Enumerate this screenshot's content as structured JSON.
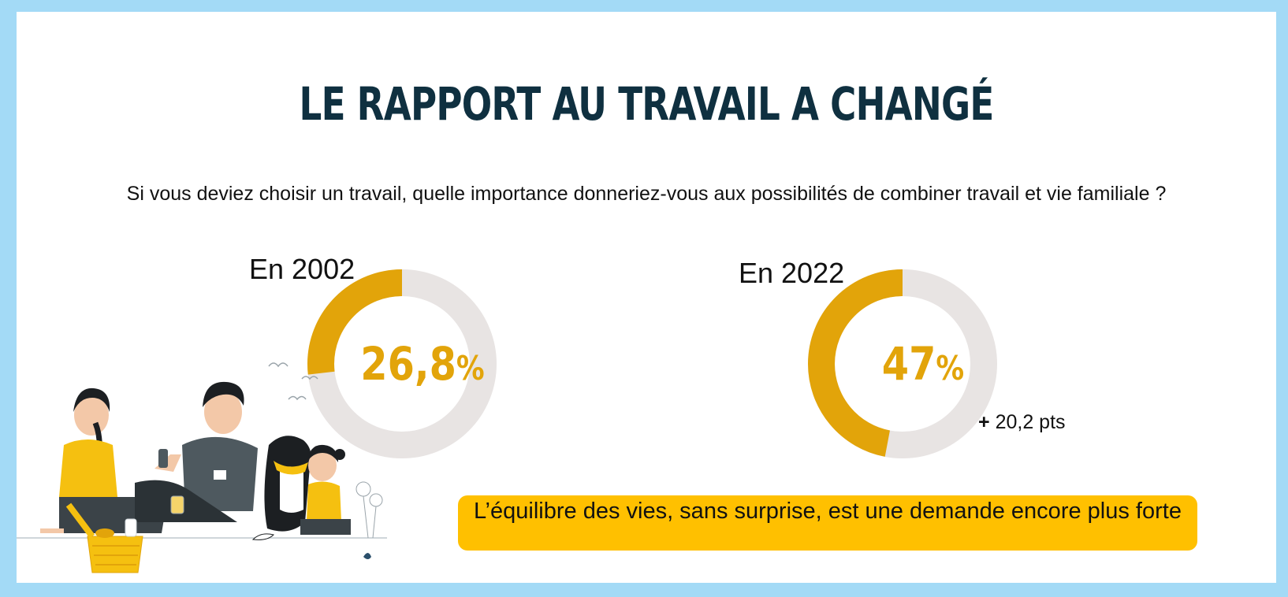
{
  "title": "LE RAPPORT AU TRAVAIL A CHANGÉ",
  "question": "Si vous deviez choisir un travail, quelle importance donneriez-vous aux possibilités de combiner travail et vie familiale ?",
  "colors": {
    "accent": "#e2a40a",
    "track": "#e8e4e3",
    "banner": "#ffc000",
    "frame": "#a3daf6",
    "title": "#0f3040"
  },
  "chart_data": [
    {
      "type": "pie",
      "label": "En 2002",
      "value": 26.8,
      "value_text": "26,8",
      "unit": "%",
      "max": 100
    },
    {
      "type": "pie",
      "label": "En 2022",
      "value": 47,
      "value_text": "47",
      "unit": "%",
      "max": 100,
      "annotation": "20,2 pts",
      "annotation_prefix": "+"
    }
  ],
  "conclusion": "L’équilibre des vies, sans surprise, est une demande encore plus forte",
  "illustration": "family-picnic-illustration"
}
